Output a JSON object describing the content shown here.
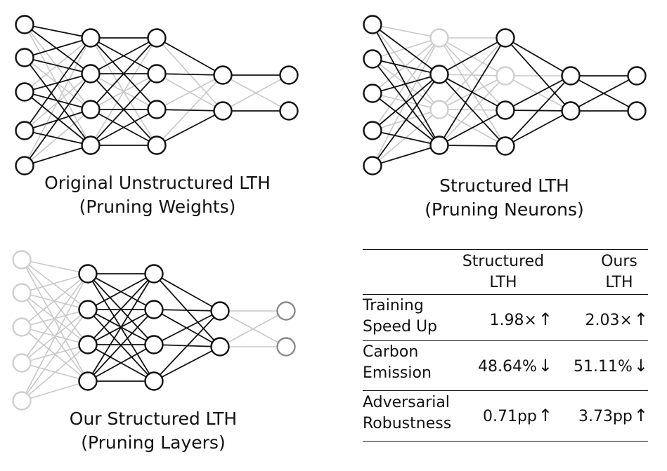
{
  "panels": [
    {
      "caption_line1": "Original Unstructured LTH",
      "caption_line2": "(Pruning Weights)"
    },
    {
      "caption_line1": "Structured LTH",
      "caption_line2": "(Pruning Neurons)"
    },
    {
      "caption_line1": "Our Structured LTH",
      "caption_line2": "(Pruning Layers)"
    }
  ],
  "table": {
    "headers": {
      "col1_line1": "Structured",
      "col1_line2": "LTH",
      "col2_line1": "Ours",
      "col2_line2": "LTH"
    },
    "rows": [
      {
        "label_line1": "Training",
        "label_line2": "Speed Up",
        "val1": "1.98×",
        "val1_arrow": "↑",
        "val2": "2.03×",
        "val2_arrow": "↑"
      },
      {
        "label_line1": "Carbon",
        "label_line2": "Emission",
        "val1": "48.64%",
        "val1_arrow": "↓",
        "val2": "51.11%",
        "val2_arrow": "↓"
      },
      {
        "label_line1": "Adversarial",
        "label_line2": "Robustness",
        "val1": "0.71pp",
        "val1_arrow": "↑",
        "val2": "3.73pp",
        "val2_arrow": "↑"
      }
    ]
  },
  "colors": {
    "active": "#111111",
    "pruned": "#c8c8c8",
    "pruned_node": "#cfcfcf",
    "pruned_node_dark": "#8a8a8a"
  }
}
